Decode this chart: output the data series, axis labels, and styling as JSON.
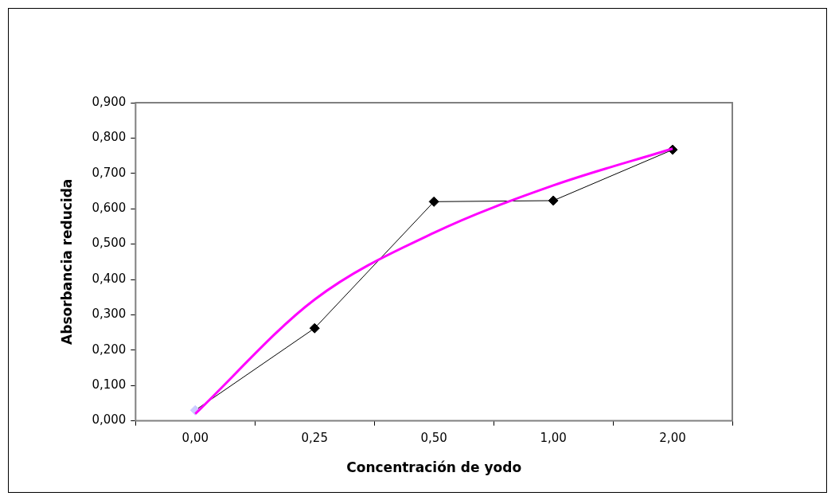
{
  "chart_data": {
    "type": "line",
    "xlabel": "Concentración de yodo",
    "ylabel": "Absorbancia reducida",
    "categories": [
      "0,00",
      "0,25",
      "0,50",
      "1,00",
      "2,00"
    ],
    "series": [
      {
        "color": "#000000",
        "colors": [
          "#ccccff",
          "#000000",
          "#000000",
          "#000000",
          "#000000"
        ],
        "values": [
          0.03,
          0.262,
          0.62,
          0.623,
          0.767
        ]
      },
      {
        "type": "line",
        "color": "#ff00ff",
        "marker": "none",
        "values": [
          0.02,
          0.343,
          0.532,
          0.666,
          0.77
        ]
      }
    ],
    "ylim": [
      0,
      0.9
    ],
    "yticks": [
      {
        "value": 0,
        "label": "0,000"
      },
      {
        "value": 0.1,
        "label": "0,100"
      },
      {
        "value": 0.2,
        "label": "0,200"
      },
      {
        "value": 0.3,
        "label": "0,300"
      },
      {
        "value": 0.4,
        "label": "0,400"
      },
      {
        "value": 0.5,
        "label": "0,500"
      },
      {
        "value": 0.6,
        "label": "0,600"
      },
      {
        "value": 0.7,
        "label": "0,700"
      },
      {
        "value": 0.8,
        "label": "0,800"
      },
      {
        "value": 0.9,
        "label": "0,900"
      }
    ],
    "grid": false,
    "legend": false,
    "marker": "diamond",
    "line_style": "solid"
  }
}
